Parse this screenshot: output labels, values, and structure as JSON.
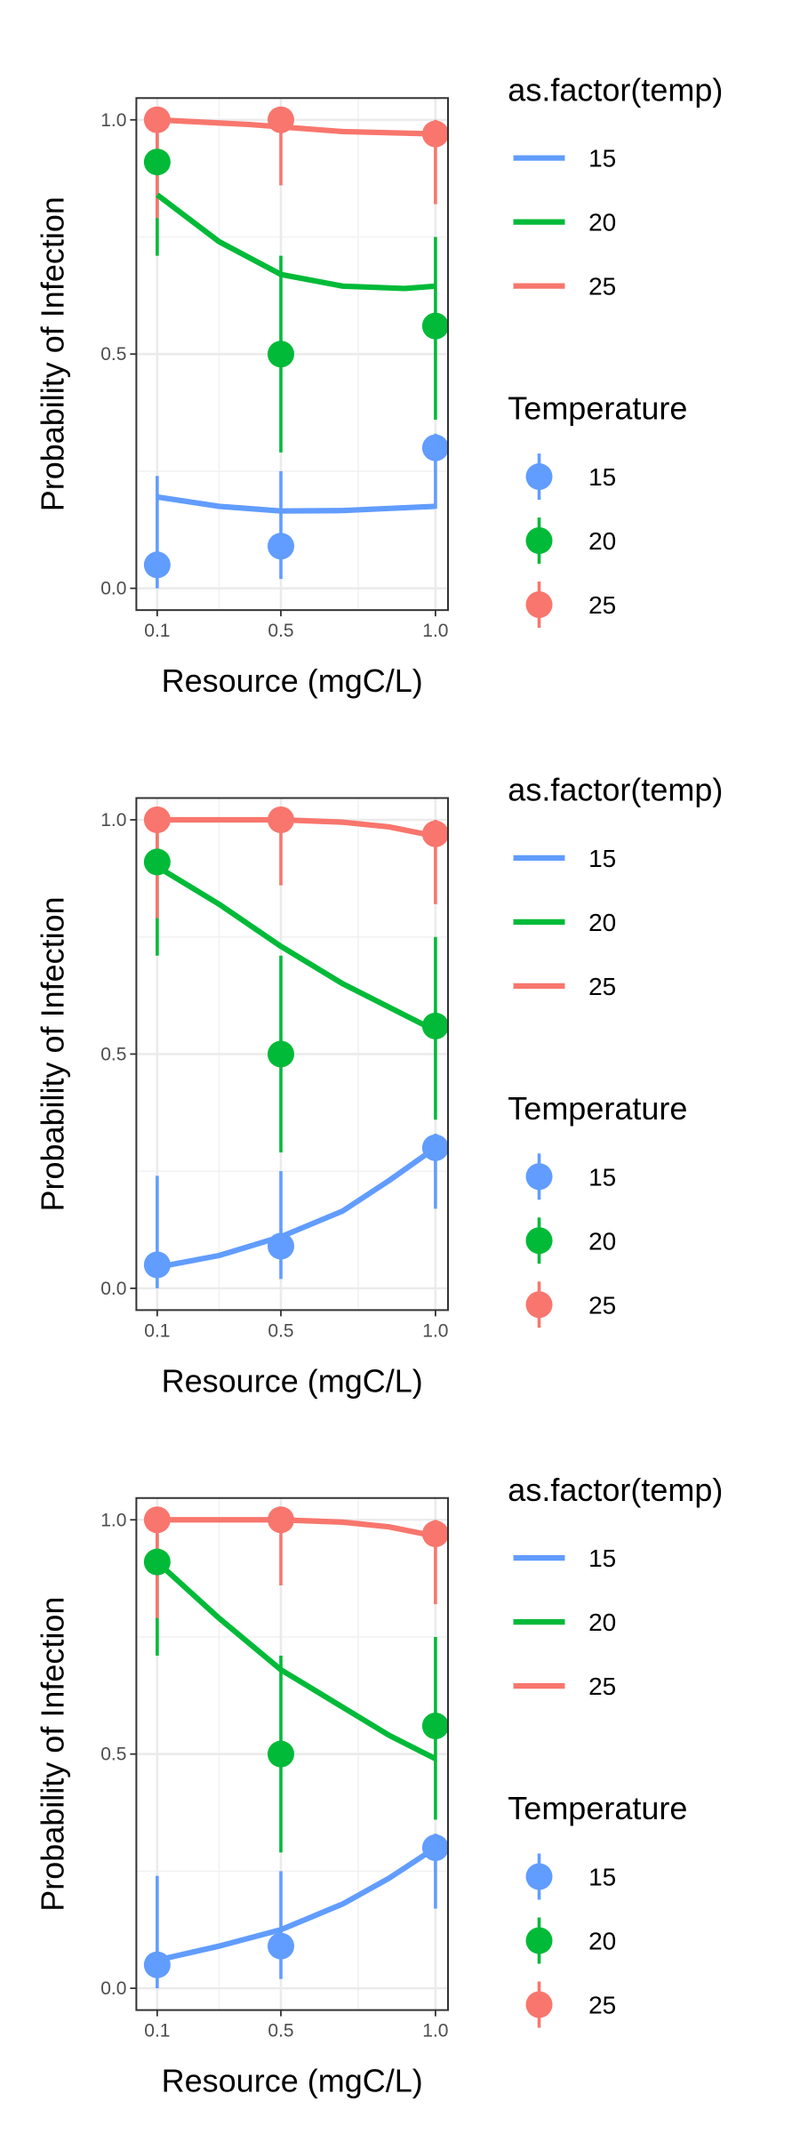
{
  "chart_data": [
    {
      "type": "scatter",
      "xlabel": "Resource (mgC/L)",
      "ylabel": "Probability of Infection",
      "xticks": [
        "0.1",
        "0.5",
        "1.0"
      ],
      "yticks": [
        "0.0",
        "0.5",
        "1.0"
      ],
      "xlim": [
        0.1,
        1.0
      ],
      "ylim": [
        0,
        1
      ],
      "grid": true,
      "legend_position": "right",
      "line_legend_title": "as.factor(temp)",
      "point_legend_title": "Temperature",
      "series": [
        {
          "name": "15",
          "color": "#619CFF",
          "points": [
            {
              "x": 0.1,
              "y": 0.05,
              "ymin": 0.0,
              "ymax": 0.24
            },
            {
              "x": 0.5,
              "y": 0.09,
              "ymin": 0.02,
              "ymax": 0.25
            },
            {
              "x": 1.0,
              "y": 0.3,
              "ymin": 0.17,
              "ymax": 0.33
            }
          ],
          "fit": [
            {
              "x": 0.1,
              "y": 0.195
            },
            {
              "x": 0.3,
              "y": 0.175
            },
            {
              "x": 0.5,
              "y": 0.165
            },
            {
              "x": 0.7,
              "y": 0.166
            },
            {
              "x": 1.0,
              "y": 0.175
            }
          ]
        },
        {
          "name": "20",
          "color": "#00BA38",
          "points": [
            {
              "x": 0.1,
              "y": 0.91,
              "ymin": 0.71,
              "ymax": 0.97
            },
            {
              "x": 0.5,
              "y": 0.5,
              "ymin": 0.29,
              "ymax": 0.71
            },
            {
              "x": 1.0,
              "y": 0.56,
              "ymin": 0.36,
              "ymax": 0.75
            }
          ],
          "fit": [
            {
              "x": 0.1,
              "y": 0.84
            },
            {
              "x": 0.3,
              "y": 0.74
            },
            {
              "x": 0.5,
              "y": 0.67
            },
            {
              "x": 0.7,
              "y": 0.645
            },
            {
              "x": 0.9,
              "y": 0.64
            },
            {
              "x": 1.0,
              "y": 0.645
            }
          ]
        },
        {
          "name": "25",
          "color": "#F8766D",
          "points": [
            {
              "x": 0.1,
              "y": 1.0,
              "ymin": 0.79,
              "ymax": 1.0
            },
            {
              "x": 0.5,
              "y": 1.0,
              "ymin": 0.86,
              "ymax": 1.0
            },
            {
              "x": 1.0,
              "y": 0.97,
              "ymin": 0.82,
              "ymax": 1.0
            }
          ],
          "fit": [
            {
              "x": 0.1,
              "y": 1.0
            },
            {
              "x": 0.4,
              "y": 0.99
            },
            {
              "x": 0.7,
              "y": 0.975
            },
            {
              "x": 1.0,
              "y": 0.97
            }
          ]
        }
      ]
    },
    {
      "type": "scatter",
      "xlabel": "Resource (mgC/L)",
      "ylabel": "Probability of Infection",
      "xticks": [
        "0.1",
        "0.5",
        "1.0"
      ],
      "yticks": [
        "0.0",
        "0.5",
        "1.0"
      ],
      "xlim": [
        0.1,
        1.0
      ],
      "ylim": [
        0,
        1
      ],
      "grid": true,
      "legend_position": "right",
      "line_legend_title": "as.factor(temp)",
      "point_legend_title": "Temperature",
      "series": [
        {
          "name": "15",
          "color": "#619CFF",
          "points": [
            {
              "x": 0.1,
              "y": 0.05,
              "ymin": 0.0,
              "ymax": 0.24
            },
            {
              "x": 0.5,
              "y": 0.09,
              "ymin": 0.02,
              "ymax": 0.25
            },
            {
              "x": 1.0,
              "y": 0.3,
              "ymin": 0.17,
              "ymax": 0.33
            }
          ],
          "fit": [
            {
              "x": 0.1,
              "y": 0.045
            },
            {
              "x": 0.3,
              "y": 0.07
            },
            {
              "x": 0.5,
              "y": 0.11
            },
            {
              "x": 0.7,
              "y": 0.165
            },
            {
              "x": 0.85,
              "y": 0.23
            },
            {
              "x": 1.0,
              "y": 0.3
            }
          ]
        },
        {
          "name": "20",
          "color": "#00BA38",
          "points": [
            {
              "x": 0.1,
              "y": 0.91,
              "ymin": 0.71,
              "ymax": 0.97
            },
            {
              "x": 0.5,
              "y": 0.5,
              "ymin": 0.29,
              "ymax": 0.71
            },
            {
              "x": 1.0,
              "y": 0.56,
              "ymin": 0.36,
              "ymax": 0.75
            }
          ],
          "fit": [
            {
              "x": 0.1,
              "y": 0.9
            },
            {
              "x": 0.3,
              "y": 0.82
            },
            {
              "x": 0.5,
              "y": 0.73
            },
            {
              "x": 0.7,
              "y": 0.65
            },
            {
              "x": 0.85,
              "y": 0.6
            },
            {
              "x": 1.0,
              "y": 0.55
            }
          ]
        },
        {
          "name": "25",
          "color": "#F8766D",
          "points": [
            {
              "x": 0.1,
              "y": 1.0,
              "ymin": 0.79,
              "ymax": 1.0
            },
            {
              "x": 0.5,
              "y": 1.0,
              "ymin": 0.86,
              "ymax": 1.0
            },
            {
              "x": 1.0,
              "y": 0.97,
              "ymin": 0.82,
              "ymax": 1.0
            }
          ],
          "fit": [
            {
              "x": 0.1,
              "y": 1.0
            },
            {
              "x": 0.5,
              "y": 1.0
            },
            {
              "x": 0.7,
              "y": 0.995
            },
            {
              "x": 0.85,
              "y": 0.985
            },
            {
              "x": 1.0,
              "y": 0.965
            }
          ]
        }
      ]
    },
    {
      "type": "scatter",
      "xlabel": "Resource (mgC/L)",
      "ylabel": "Probability of Infection",
      "xticks": [
        "0.1",
        "0.5",
        "1.0"
      ],
      "yticks": [
        "0.0",
        "0.5",
        "1.0"
      ],
      "xlim": [
        0.1,
        1.0
      ],
      "ylim": [
        0,
        1
      ],
      "grid": true,
      "legend_position": "right",
      "line_legend_title": "as.factor(temp)",
      "point_legend_title": "Temperature",
      "series": [
        {
          "name": "15",
          "color": "#619CFF",
          "points": [
            {
              "x": 0.1,
              "y": 0.05,
              "ymin": 0.0,
              "ymax": 0.24
            },
            {
              "x": 0.5,
              "y": 0.09,
              "ymin": 0.02,
              "ymax": 0.25
            },
            {
              "x": 1.0,
              "y": 0.3,
              "ymin": 0.17,
              "ymax": 0.33
            }
          ],
          "fit": [
            {
              "x": 0.1,
              "y": 0.06
            },
            {
              "x": 0.3,
              "y": 0.09
            },
            {
              "x": 0.5,
              "y": 0.125
            },
            {
              "x": 0.7,
              "y": 0.18
            },
            {
              "x": 0.85,
              "y": 0.235
            },
            {
              "x": 1.0,
              "y": 0.3
            }
          ]
        },
        {
          "name": "20",
          "color": "#00BA38",
          "points": [
            {
              "x": 0.1,
              "y": 0.91,
              "ymin": 0.71,
              "ymax": 0.97
            },
            {
              "x": 0.5,
              "y": 0.5,
              "ymin": 0.29,
              "ymax": 0.71
            },
            {
              "x": 1.0,
              "y": 0.56,
              "ymin": 0.36,
              "ymax": 0.75
            }
          ],
          "fit": [
            {
              "x": 0.1,
              "y": 0.91
            },
            {
              "x": 0.3,
              "y": 0.79
            },
            {
              "x": 0.5,
              "y": 0.68
            },
            {
              "x": 0.7,
              "y": 0.6
            },
            {
              "x": 0.85,
              "y": 0.54
            },
            {
              "x": 1.0,
              "y": 0.49
            }
          ]
        },
        {
          "name": "25",
          "color": "#F8766D",
          "points": [
            {
              "x": 0.1,
              "y": 1.0,
              "ymin": 0.79,
              "ymax": 1.0
            },
            {
              "x": 0.5,
              "y": 1.0,
              "ymin": 0.86,
              "ymax": 1.0
            },
            {
              "x": 1.0,
              "y": 0.97,
              "ymin": 0.82,
              "ymax": 1.0
            }
          ],
          "fit": [
            {
              "x": 0.1,
              "y": 1.0
            },
            {
              "x": 0.5,
              "y": 1.0
            },
            {
              "x": 0.7,
              "y": 0.995
            },
            {
              "x": 0.85,
              "y": 0.985
            },
            {
              "x": 1.0,
              "y": 0.965
            }
          ]
        }
      ]
    }
  ]
}
